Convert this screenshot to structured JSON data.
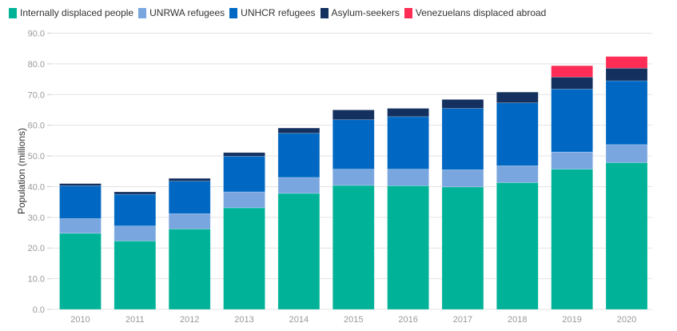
{
  "chart_data": {
    "type": "bar",
    "stacked": true,
    "title": "",
    "xlabel": "",
    "ylabel": "Population (millions)",
    "ylim": [
      0,
      90
    ],
    "yticks": [
      0,
      10,
      20,
      30,
      40,
      50,
      60,
      70,
      80,
      90
    ],
    "ytick_labels": [
      "0.0",
      "10.0",
      "20.0",
      "30.0",
      "40.0",
      "50.0",
      "60.0",
      "70.0",
      "80.0",
      "90.0"
    ],
    "grid": true,
    "legend_position": "top-left",
    "categories": [
      "2010",
      "2011",
      "2012",
      "2013",
      "2014",
      "2015",
      "2016",
      "2017",
      "2018",
      "2019",
      "2020"
    ],
    "series": [
      {
        "name": "Internally displaced people",
        "color": "#00B398",
        "values": [
          24.8,
          22.3,
          26.2,
          33.1,
          37.8,
          40.4,
          40.3,
          39.9,
          41.3,
          45.7,
          47.8
        ]
      },
      {
        "name": "UNRWA refugees",
        "color": "#7AA6E0",
        "values": [
          4.8,
          4.9,
          5.0,
          5.2,
          5.2,
          5.3,
          5.4,
          5.6,
          5.5,
          5.6,
          5.9
        ]
      },
      {
        "name": "UNHCR refugees",
        "color": "#0068C2",
        "values": [
          10.7,
          10.3,
          10.6,
          11.6,
          14.4,
          16.1,
          17.1,
          20.0,
          20.5,
          20.5,
          20.8
        ]
      },
      {
        "name": "Asylum-seekers",
        "color": "#13305F",
        "values": [
          0.7,
          0.8,
          0.9,
          1.2,
          1.7,
          3.2,
          2.7,
          2.9,
          3.5,
          3.9,
          4.1
        ]
      },
      {
        "name": "Venezuelans displaced abroad",
        "color": "#FF2C55",
        "values": [
          0,
          0,
          0,
          0,
          0,
          0,
          0,
          0,
          0,
          3.7,
          3.8
        ]
      }
    ]
  }
}
